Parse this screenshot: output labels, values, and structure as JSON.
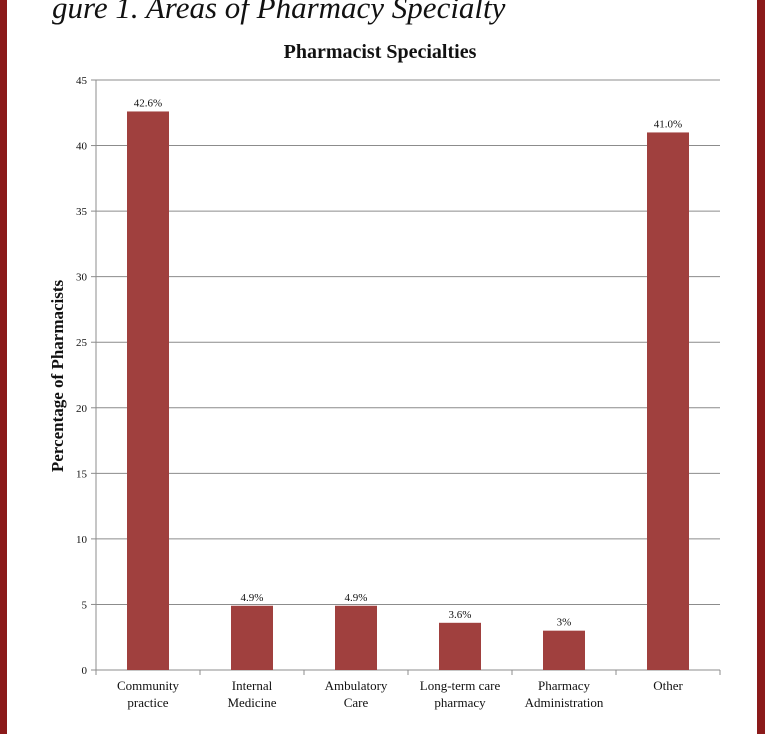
{
  "figure_caption": "gure 1. Areas of Pharmacy Specialty",
  "colors": {
    "frame": "#8b1a1a",
    "bar": "#a0403e",
    "grid": "#8c8c8c"
  },
  "chart_data": {
    "type": "bar",
    "title": "Pharmacist Specialties",
    "xlabel": "",
    "ylabel": "Percentage of Pharmacists",
    "ylim": [
      0,
      45
    ],
    "yticks": [
      0,
      5,
      10,
      15,
      20,
      25,
      30,
      35,
      40,
      45
    ],
    "grid": true,
    "legend": "none",
    "categories": [
      [
        "Community",
        "practice"
      ],
      [
        "Internal",
        "Medicine"
      ],
      [
        "Ambulatory",
        "Care"
      ],
      [
        "Long-term care",
        "pharmacy"
      ],
      [
        "Pharmacy",
        "Administration"
      ],
      [
        "Other"
      ]
    ],
    "values": [
      42.6,
      4.9,
      4.9,
      3.6,
      3.0,
      41.0
    ],
    "data_labels": [
      "42.6%",
      "4.9%",
      "4.9%",
      "3.6%",
      "3%",
      "41.0%"
    ]
  }
}
